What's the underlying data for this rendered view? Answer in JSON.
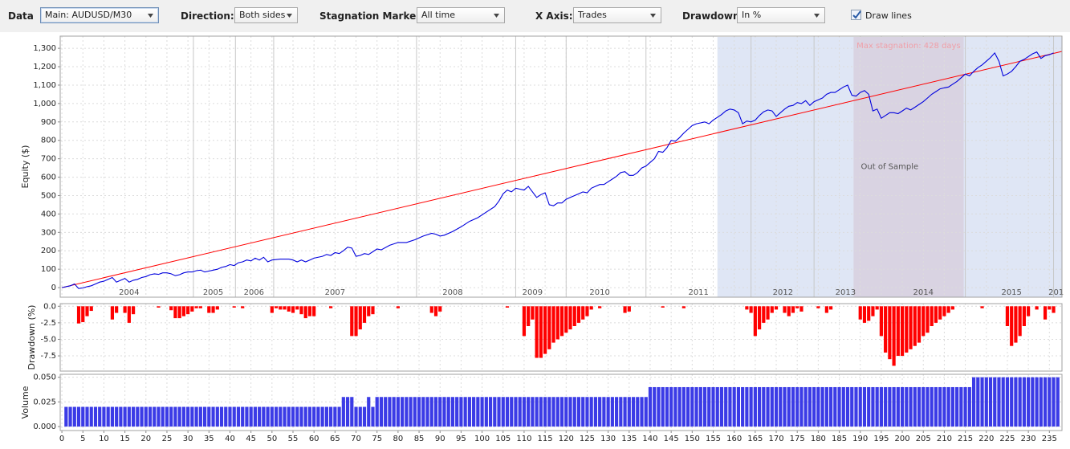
{
  "toolbar": {
    "data": {
      "label": "Data",
      "value": "Main: AUDUSD/M30"
    },
    "direction": {
      "label": "Direction:",
      "value": "Both sides"
    },
    "stagnation_marker": {
      "label": "Stagnation Marker:",
      "value": "All time"
    },
    "x_axis": {
      "label": "X Axis:",
      "value": "Trades"
    },
    "drawdown": {
      "label": "Drawdown:",
      "value": "In %"
    },
    "draw_lines": {
      "label": "Draw lines",
      "checked": true
    }
  },
  "chart_data": [
    {
      "type": "line",
      "ylabel": "Equity ($)",
      "color": "#0000dd",
      "xlim": [
        -0.4,
        238
      ],
      "ylim": [
        -52,
        1366
      ],
      "yticks": [
        0,
        100,
        200,
        300,
        400,
        500,
        600,
        700,
        800,
        900,
        {
          "value": 1000,
          "label": "1,000"
        },
        {
          "value": 1100,
          "label": "1,100"
        },
        {
          "value": 1200,
          "label": "1,200"
        },
        {
          "value": 1300,
          "label": "1,300"
        }
      ],
      "grid": true,
      "x": [
        0,
        1,
        2,
        3,
        4,
        5,
        6,
        7,
        8,
        9,
        10,
        11,
        12,
        13,
        14,
        15,
        16,
        17,
        18,
        19,
        20,
        21,
        22,
        23,
        24,
        25,
        26,
        27,
        28,
        29,
        30,
        31,
        32,
        33,
        34,
        35,
        36,
        37,
        38,
        39,
        40,
        41,
        42,
        43,
        44,
        45,
        46,
        47,
        48,
        49,
        50,
        52,
        54,
        55,
        56,
        57,
        58,
        59,
        60,
        62,
        63,
        64,
        65,
        66,
        67,
        68,
        69,
        70,
        71,
        72,
        73,
        74,
        75,
        76,
        78,
        80,
        82,
        84,
        86,
        88,
        89,
        90,
        91,
        93,
        95,
        97,
        99,
        101,
        103,
        104,
        105,
        106,
        107,
        108,
        109,
        110,
        111,
        112,
        113,
        114,
        115,
        116,
        117,
        118,
        119,
        120,
        121,
        122,
        123,
        124,
        125,
        126,
        127,
        128,
        129,
        130,
        131,
        132,
        133,
        134,
        135,
        136,
        137,
        138,
        139,
        140,
        141,
        142,
        143,
        144,
        145,
        146,
        147,
        148,
        149,
        150,
        151,
        152,
        153,
        154,
        155,
        156,
        157,
        158,
        159,
        160,
        161,
        162,
        163,
        164,
        165,
        166,
        167,
        168,
        169,
        170,
        171,
        172,
        173,
        174,
        175,
        176,
        177,
        178,
        179,
        180,
        181,
        182,
        183,
        184,
        185,
        186,
        187,
        188,
        189,
        190,
        191,
        192,
        193,
        194,
        195,
        196,
        197,
        198,
        199,
        200,
        201,
        202,
        203,
        204,
        205,
        206,
        207,
        208,
        209,
        210,
        211,
        212,
        213,
        214,
        215,
        216,
        217,
        218,
        219,
        220,
        221,
        222,
        223,
        224,
        225,
        226,
        227,
        228,
        229,
        230,
        231,
        232,
        233,
        234,
        235,
        236
      ],
      "values": [
        0,
        5,
        10,
        20,
        -5,
        -2,
        5,
        10,
        20,
        30,
        35,
        45,
        55,
        30,
        40,
        50,
        30,
        40,
        45,
        55,
        60,
        70,
        75,
        72,
        80,
        80,
        75,
        65,
        70,
        80,
        85,
        85,
        92,
        95,
        85,
        90,
        95,
        100,
        110,
        115,
        125,
        120,
        135,
        140,
        150,
        145,
        160,
        150,
        165,
        140,
        150,
        155,
        155,
        150,
        140,
        150,
        140,
        150,
        160,
        170,
        180,
        175,
        190,
        185,
        200,
        220,
        215,
        170,
        175,
        185,
        180,
        195,
        210,
        205,
        230,
        245,
        245,
        260,
        280,
        295,
        290,
        280,
        285,
        305,
        330,
        360,
        380,
        410,
        440,
        470,
        510,
        530,
        520,
        540,
        535,
        530,
        550,
        520,
        490,
        505,
        515,
        450,
        445,
        460,
        460,
        480,
        490,
        500,
        510,
        520,
        515,
        540,
        550,
        560,
        560,
        575,
        590,
        605,
        625,
        630,
        610,
        610,
        625,
        650,
        660,
        680,
        700,
        740,
        735,
        760,
        800,
        795,
        815,
        840,
        860,
        880,
        890,
        895,
        900,
        890,
        910,
        925,
        940,
        960,
        970,
        965,
        950,
        890,
        905,
        900,
        910,
        935,
        955,
        965,
        960,
        930,
        950,
        970,
        985,
        990,
        1005,
        1000,
        1015,
        990,
        1010,
        1020,
        1030,
        1050,
        1060,
        1060,
        1075,
        1090,
        1100,
        1045,
        1040,
        1060,
        1070,
        1050,
        960,
        970,
        920,
        935,
        950,
        950,
        945,
        960,
        975,
        965,
        980,
        995,
        1010,
        1030,
        1050,
        1065,
        1080,
        1085,
        1090,
        1105,
        1120,
        1140,
        1160,
        1150,
        1175,
        1195,
        1210,
        1230,
        1250,
        1275,
        1230,
        1150,
        1160,
        1175,
        1200,
        1230,
        1240,
        1255,
        1270,
        1280,
        1245,
        1260,
        1265,
        1275
      ],
      "trend_line": {
        "x": [
          0,
          238
        ],
        "values": [
          0,
          1283
        ],
        "color": "#ff0000"
      },
      "regions": [
        {
          "label": "Out of Sample",
          "x": [
            156,
            238
          ],
          "color": "#dfe6f5",
          "label_color": "#555555",
          "label_position": "middle"
        },
        {
          "label": "Max stagnation: 428 days",
          "x": [
            188.4,
            214.6
          ],
          "color": "#d9d3e2",
          "label_color": "#f0a0a8",
          "label_position": "top"
        }
      ],
      "year_lines": [
        31.3,
        41.3,
        50.4,
        84.4,
        108,
        120,
        139,
        164,
        179,
        215,
        236
      ],
      "year_labels": [
        {
          "label": "2004",
          "x": 16
        },
        {
          "label": "2005",
          "x": 36
        },
        {
          "label": "2006",
          "x": 45.7
        },
        {
          "label": "2007",
          "x": 65
        },
        {
          "label": "2008",
          "x": 93
        },
        {
          "label": "2009",
          "x": 112
        },
        {
          "label": "2010",
          "x": 128
        },
        {
          "label": "2011",
          "x": 151.5
        },
        {
          "label": "2012",
          "x": 171.6
        },
        {
          "label": "2013",
          "x": 186.5
        },
        {
          "label": "2014",
          "x": 205
        },
        {
          "label": "2015",
          "x": 226
        },
        {
          "label": "201",
          "x": 236.6
        }
      ]
    },
    {
      "type": "bar",
      "ylabel": "Drawdown (%)",
      "color": "#ff0000",
      "xlim": [
        -0.4,
        238
      ],
      "ylim": [
        -9.8,
        0.4
      ],
      "yticks": [
        {
          "value": 0,
          "label": "0.0"
        },
        -2.5,
        {
          "value": -5,
          "label": "-5.0"
        },
        -7.5
      ],
      "grid": true,
      "x": [
        4,
        5,
        6,
        7,
        12,
        13,
        15,
        16,
        17,
        23,
        26,
        27,
        28,
        29,
        30,
        31,
        32,
        33,
        35,
        36,
        37,
        41,
        43,
        50,
        51,
        52,
        53,
        54,
        55,
        56,
        57,
        58,
        59,
        60,
        64,
        69,
        70,
        71,
        72,
        73,
        74,
        80,
        88,
        89,
        90,
        106,
        110,
        111,
        112,
        113,
        114,
        115,
        116,
        117,
        118,
        119,
        120,
        121,
        122,
        123,
        124,
        125,
        126,
        128,
        134,
        135,
        143,
        148,
        163,
        164,
        165,
        166,
        167,
        168,
        169,
        170,
        172,
        173,
        174,
        175,
        176,
        180,
        182,
        183,
        190,
        191,
        192,
        193,
        194,
        195,
        196,
        197,
        198,
        199,
        200,
        201,
        202,
        203,
        204,
        205,
        206,
        207,
        208,
        209,
        210,
        211,
        212,
        219,
        225,
        226,
        227,
        228,
        229,
        230,
        232,
        234,
        235,
        236
      ],
      "values": [
        -2.6,
        -2.4,
        -1.5,
        -0.7,
        -2.0,
        -1.0,
        -1.0,
        -2.5,
        -1.2,
        -0.2,
        -0.6,
        -1.8,
        -1.8,
        -1.5,
        -1.2,
        -0.8,
        -0.3,
        -0.3,
        -1.0,
        -1.0,
        -0.5,
        -0.2,
        -0.3,
        -1.0,
        -0.3,
        -0.5,
        -0.5,
        -0.8,
        -1.0,
        -0.5,
        -1.2,
        -1.8,
        -1.5,
        -1.5,
        -0.3,
        -4.5,
        -4.5,
        -3.5,
        -2.5,
        -1.5,
        -1.2,
        -0.3,
        -1.0,
        -1.5,
        -0.8,
        -0.2,
        -4.5,
        -3.0,
        -2.0,
        -7.8,
        -7.8,
        -7.2,
        -6.5,
        -5.5,
        -5.0,
        -4.5,
        -4.0,
        -3.5,
        -3.0,
        -2.5,
        -2.0,
        -1.5,
        -0.5,
        -0.3,
        -1.0,
        -0.8,
        -0.2,
        -0.3,
        -0.5,
        -1.0,
        -4.5,
        -3.5,
        -2.5,
        -2.0,
        -1.0,
        -0.5,
        -1.0,
        -1.5,
        -1.0,
        -0.3,
        -0.8,
        -0.3,
        -1.0,
        -0.5,
        -2.0,
        -2.5,
        -2.2,
        -1.5,
        -0.5,
        -4.5,
        -7.0,
        -8.0,
        -9.0,
        -7.5,
        -7.5,
        -7.0,
        -6.5,
        -6.0,
        -5.5,
        -4.5,
        -4.0,
        -3.0,
        -2.5,
        -2.0,
        -1.5,
        -1.0,
        -0.5,
        -0.3,
        -3.0,
        -6.0,
        -5.5,
        -4.5,
        -3.0,
        -1.5,
        -0.5,
        -2.0,
        -0.5,
        -1.0
      ]
    },
    {
      "type": "bar",
      "ylabel": "Volume",
      "color": "#3b3be6",
      "xlim": [
        -0.4,
        238
      ],
      "ylim": [
        -0.004,
        0.053
      ],
      "yticks": [
        {
          "value": 0,
          "label": "0.000"
        },
        0.025,
        {
          "value": 0.05,
          "label": "0.050"
        }
      ],
      "xticks": [
        0,
        5,
        10,
        15,
        20,
        25,
        30,
        35,
        40,
        45,
        50,
        55,
        60,
        65,
        70,
        75,
        80,
        85,
        90,
        95,
        100,
        105,
        110,
        115,
        120,
        125,
        130,
        135,
        140,
        145,
        150,
        155,
        160,
        165,
        170,
        175,
        180,
        185,
        190,
        195,
        200,
        205,
        210,
        215,
        220,
        225,
        230,
        235
      ],
      "grid": true,
      "values": [
        null,
        0.02,
        0.02,
        0.02,
        0.02,
        0.02,
        0.02,
        0.02,
        0.02,
        0.02,
        0.02,
        0.02,
        0.02,
        0.02,
        0.02,
        0.02,
        0.02,
        0.02,
        0.02,
        0.02,
        0.02,
        0.02,
        0.02,
        0.02,
        0.02,
        0.02,
        0.02,
        0.02,
        0.02,
        0.02,
        0.02,
        0.02,
        0.02,
        0.02,
        0.02,
        0.02,
        0.02,
        0.02,
        0.02,
        0.02,
        0.02,
        0.02,
        0.02,
        0.02,
        0.02,
        0.02,
        0.02,
        0.02,
        0.02,
        0.02,
        0.02,
        0.02,
        0.02,
        0.02,
        0.02,
        0.02,
        0.02,
        0.02,
        0.02,
        0.02,
        0.02,
        0.02,
        0.02,
        0.02,
        0.02,
        0.02,
        0.02,
        0.03,
        0.03,
        0.03,
        0.02,
        0.02,
        0.02,
        0.03,
        0.02,
        0.03,
        0.03,
        0.03,
        0.03,
        0.03,
        0.03,
        0.03,
        0.03,
        0.03,
        0.03,
        0.03,
        0.03,
        0.03,
        0.03,
        0.03,
        0.03,
        0.03,
        0.03,
        0.03,
        0.03,
        0.03,
        0.03,
        0.03,
        0.03,
        0.03,
        0.03,
        0.03,
        0.03,
        0.03,
        0.03,
        0.03,
        0.03,
        0.03,
        0.03,
        0.03,
        0.03,
        0.03,
        0.03,
        0.03,
        0.03,
        0.03,
        0.03,
        0.03,
        0.03,
        0.03,
        0.03,
        0.03,
        0.03,
        0.03,
        0.03,
        0.03,
        0.03,
        0.03,
        0.03,
        0.03,
        0.03,
        0.03,
        0.03,
        0.03,
        0.03,
        0.03,
        0.03,
        0.03,
        0.03,
        0.03,
        0.04,
        0.04,
        0.04,
        0.04,
        0.04,
        0.04,
        0.04,
        0.04,
        0.04,
        0.04,
        0.04,
        0.04,
        0.04,
        0.04,
        0.04,
        0.04,
        0.04,
        0.04,
        0.04,
        0.04,
        0.04,
        0.04,
        0.04,
        0.04,
        0.04,
        0.04,
        0.04,
        0.04,
        0.04,
        0.04,
        0.04,
        0.04,
        0.04,
        0.04,
        0.04,
        0.04,
        0.04,
        0.04,
        0.04,
        0.04,
        0.04,
        0.04,
        0.04,
        0.04,
        0.04,
        0.04,
        0.04,
        0.04,
        0.04,
        0.04,
        0.04,
        0.04,
        0.04,
        0.04,
        0.04,
        0.04,
        0.04,
        0.04,
        0.04,
        0.04,
        0.04,
        0.04,
        0.04,
        0.04,
        0.04,
        0.04,
        0.04,
        0.04,
        0.04,
        0.04,
        0.04,
        0.04,
        0.04,
        0.04,
        0.04,
        0.04,
        0.04,
        0.05,
        0.05,
        0.05,
        0.05,
        0.05,
        0.05,
        0.05,
        0.05,
        0.05,
        0.05,
        0.05,
        0.05,
        0.05,
        0.05,
        0.05,
        0.05,
        0.05,
        0.05,
        0.05,
        0.05,
        0.05
      ]
    }
  ]
}
